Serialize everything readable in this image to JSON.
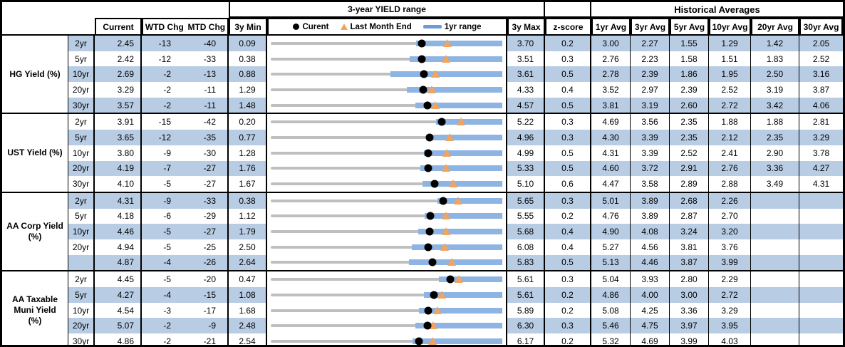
{
  "header": {
    "range_title": "3-year YIELD range",
    "hist_title": "Historical Averages",
    "col_current": "Current",
    "col_wtd": "WTD Chg",
    "col_mtd": "MTD Chg",
    "col_min": "3y Min",
    "col_max": "3y Max",
    "col_z": "z-score",
    "avg_cols": [
      "1yr Avg",
      "3yr Avg",
      "5yr Avg",
      "10yr Avg",
      "20yr Avg",
      "30yr Avg"
    ]
  },
  "legend": {
    "current": "Curent",
    "last_month": "Last Month End",
    "range": "1yr range"
  },
  "colors": {
    "shade_blue": "#b8cce4",
    "bar_blue": "#8db4e2",
    "legend_dash_blue": "#6d9bd2",
    "track_gray": "#bfbfbf",
    "triangle_orange": "#f2a35e",
    "dot_black": "#000000",
    "border": "#000000"
  },
  "chart_data": {
    "type": "table",
    "note": "Each row has a bullet range chart: gray track spans 3y Min to 3y Max; blue bar is 1yr range (low1yr to 3y Max); black dot = current; orange triangle = last month end (lm). Chg values in bp.",
    "groups": [
      {
        "label_lines": [
          "HG Yield (%)"
        ],
        "rows": [
          {
            "tenor": "2yr",
            "current": "2.45",
            "wtd": "-13",
            "mtd": "-40",
            "min": "0.09",
            "max": "3.70",
            "z": "0.2",
            "avg": [
              "3.00",
              "2.27",
              "1.55",
              "1.29",
              "1.42",
              "2.05"
            ],
            "low1yr": 2.36,
            "lm": 2.85
          },
          {
            "tenor": "5yr",
            "current": "2.42",
            "wtd": "-12",
            "mtd": "-33",
            "min": "0.38",
            "max": "3.51",
            "z": "0.3",
            "avg": [
              "2.76",
              "2.23",
              "1.58",
              "1.51",
              "1.83",
              "2.52"
            ],
            "low1yr": 2.26,
            "lm": 2.75
          },
          {
            "tenor": "10yr",
            "current": "2.69",
            "wtd": "-2",
            "mtd": "-13",
            "min": "0.88",
            "max": "3.61",
            "z": "0.5",
            "avg": [
              "2.78",
              "2.39",
              "1.86",
              "1.95",
              "2.50",
              "3.16"
            ],
            "low1yr": 2.29,
            "lm": 2.82
          },
          {
            "tenor": "20yr",
            "current": "3.29",
            "wtd": "-2",
            "mtd": "-11",
            "min": "1.29",
            "max": "4.33",
            "z": "0.4",
            "avg": [
              "3.52",
              "2.97",
              "2.39",
              "2.52",
              "3.19",
              "3.87"
            ],
            "low1yr": 3.08,
            "lm": 3.4
          },
          {
            "tenor": "30yr",
            "current": "3.57",
            "wtd": "-2",
            "mtd": "-11",
            "min": "1.48",
            "max": "4.57",
            "z": "0.5",
            "avg": [
              "3.81",
              "3.19",
              "2.60",
              "2.72",
              "3.42",
              "4.06"
            ],
            "low1yr": 3.41,
            "lm": 3.68
          }
        ]
      },
      {
        "label_lines": [
          "UST Yield (%)"
        ],
        "rows": [
          {
            "tenor": "2yr",
            "current": "3.91",
            "wtd": "-15",
            "mtd": "-42",
            "min": "0.20",
            "max": "5.22",
            "z": "0.3",
            "avg": [
              "4.69",
              "3.56",
              "2.35",
              "1.88",
              "1.88",
              "2.81"
            ],
            "low1yr": 3.78,
            "lm": 4.33
          },
          {
            "tenor": "5yr",
            "current": "3.65",
            "wtd": "-12",
            "mtd": "-35",
            "min": "0.77",
            "max": "4.96",
            "z": "0.3",
            "avg": [
              "4.30",
              "3.39",
              "2.35",
              "2.12",
              "2.35",
              "3.29"
            ],
            "low1yr": 3.58,
            "lm": 4.0
          },
          {
            "tenor": "10yr",
            "current": "3.80",
            "wtd": "-9",
            "mtd": "-30",
            "min": "1.28",
            "max": "4.99",
            "z": "0.5",
            "avg": [
              "4.31",
              "3.39",
              "2.52",
              "2.41",
              "2.90",
              "3.78"
            ],
            "low1yr": 3.74,
            "lm": 4.1
          },
          {
            "tenor": "20yr",
            "current": "4.19",
            "wtd": "-7",
            "mtd": "-27",
            "min": "1.76",
            "max": "5.33",
            "z": "0.5",
            "avg": [
              "4.60",
              "3.72",
              "2.91",
              "2.76",
              "3.36",
              "4.27"
            ],
            "low1yr": 4.07,
            "lm": 4.46
          },
          {
            "tenor": "30yr",
            "current": "4.10",
            "wtd": "-5",
            "mtd": "-27",
            "min": "1.67",
            "max": "5.10",
            "z": "0.6",
            "avg": [
              "4.47",
              "3.58",
              "2.89",
              "2.88",
              "3.49",
              "4.31"
            ],
            "low1yr": 3.92,
            "lm": 4.37
          }
        ]
      },
      {
        "label_lines": [
          "AA Corp Yield",
          "(%)"
        ],
        "rows": [
          {
            "tenor": "2yr",
            "current": "4.31",
            "wtd": "-9",
            "mtd": "-33",
            "min": "0.38",
            "max": "5.65",
            "z": "0.3",
            "avg": [
              "5.01",
              "3.89",
              "2.68",
              "2.26",
              "",
              ""
            ],
            "low1yr": 4.18,
            "lm": 4.64
          },
          {
            "tenor": "5yr",
            "current": "4.18",
            "wtd": "-6",
            "mtd": "-29",
            "min": "1.12",
            "max": "5.55",
            "z": "0.2",
            "avg": [
              "4.76",
              "3.89",
              "2.87",
              "2.70",
              "",
              ""
            ],
            "low1yr": 4.07,
            "lm": 4.47
          },
          {
            "tenor": "10yr",
            "current": "4.46",
            "wtd": "-5",
            "mtd": "-27",
            "min": "1.79",
            "max": "5.68",
            "z": "0.4",
            "avg": [
              "4.90",
              "4.08",
              "3.24",
              "3.20",
              "",
              ""
            ],
            "low1yr": 4.27,
            "lm": 4.73
          },
          {
            "tenor": "20yr",
            "current": "4.94",
            "wtd": "-5",
            "mtd": "-25",
            "min": "2.50",
            "max": "6.08",
            "z": "0.4",
            "avg": [
              "5.27",
              "4.56",
              "3.81",
              "3.76",
              "",
              ""
            ],
            "low1yr": 4.68,
            "lm": 5.19
          },
          {
            "tenor": "",
            "current": "4.87",
            "wtd": "-4",
            "mtd": "-26",
            "min": "2.64",
            "max": "5.83",
            "z": "0.5",
            "avg": [
              "5.13",
              "4.46",
              "3.87",
              "3.99",
              "",
              ""
            ],
            "low1yr": 4.54,
            "lm": 5.13
          }
        ]
      },
      {
        "label_lines": [
          "AA Taxable",
          "Muni Yield",
          "(%)"
        ],
        "rows": [
          {
            "tenor": "2yr",
            "current": "4.45",
            "wtd": "-5",
            "mtd": "-20",
            "min": "0.47",
            "max": "5.61",
            "z": "0.3",
            "avg": [
              "5.04",
              "3.93",
              "2.80",
              "2.29",
              "",
              ""
            ],
            "low1yr": 4.2,
            "lm": 4.65
          },
          {
            "tenor": "5yr",
            "current": "4.27",
            "wtd": "-4",
            "mtd": "-15",
            "min": "1.08",
            "max": "5.61",
            "z": "0.2",
            "avg": [
              "4.86",
              "4.00",
              "3.00",
              "2.72",
              "",
              ""
            ],
            "low1yr": 4.07,
            "lm": 4.42
          },
          {
            "tenor": "10yr",
            "current": "4.54",
            "wtd": "-3",
            "mtd": "-17",
            "min": "1.68",
            "max": "5.89",
            "z": "0.2",
            "avg": [
              "5.08",
              "4.25",
              "3.36",
              "3.29",
              "",
              ""
            ],
            "low1yr": 4.37,
            "lm": 4.71
          },
          {
            "tenor": "20yr",
            "current": "5.07",
            "wtd": "-2",
            "mtd": "-9",
            "min": "2.48",
            "max": "6.30",
            "z": "0.3",
            "avg": [
              "5.46",
              "4.75",
              "3.97",
              "3.95",
              "",
              ""
            ],
            "low1yr": 4.87,
            "lm": 5.16
          },
          {
            "tenor": "30yr",
            "current": "4.86",
            "wtd": "-2",
            "mtd": "-21",
            "min": "2.54",
            "max": "6.17",
            "z": "0.2",
            "avg": [
              "5.32",
              "4.69",
              "3.99",
              "4.03",
              "",
              ""
            ],
            "low1yr": 4.76,
            "lm": 5.07
          }
        ]
      }
    ]
  }
}
